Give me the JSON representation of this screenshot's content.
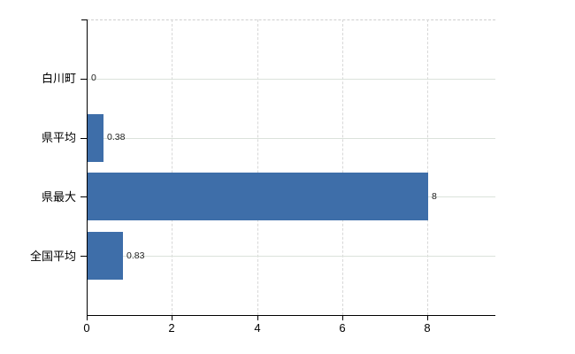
{
  "chart_data": {
    "type": "bar",
    "orientation": "horizontal",
    "title": "",
    "xlabel": "",
    "ylabel": "",
    "categories": [
      "白川町",
      "県平均",
      "県最大",
      "全国平均"
    ],
    "values": [
      0,
      0.38,
      8,
      0.83
    ],
    "value_labels": [
      "0",
      "0.38",
      "8",
      "0.83"
    ],
    "x_ticks": [
      0,
      2,
      4,
      6,
      8
    ],
    "x_tick_labels": [
      "0",
      "2",
      "4",
      "6",
      "8"
    ],
    "xlim": [
      0,
      9.6
    ],
    "grid": true,
    "legend": "none",
    "colors": {
      "bar": "#3e6ea9",
      "axis": "#000000",
      "category_text": "#000000",
      "value_text": "#222222",
      "tick_text": "#000000",
      "h_gridline": "#dbe2db",
      "v_gridline": "#d8d8d8",
      "background": "#ffffff"
    }
  }
}
